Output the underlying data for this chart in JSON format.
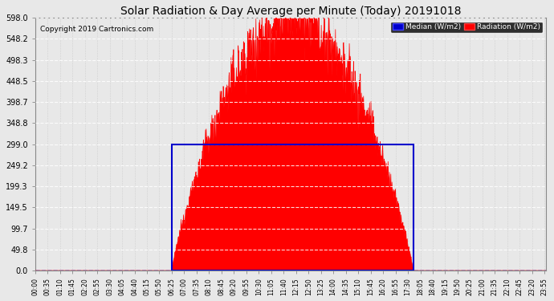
{
  "title": "Solar Radiation & Day Average per Minute (Today) 20191018",
  "copyright": "Copyright 2019 Cartronics.com",
  "legend_labels": [
    "Median (W/m2)",
    "Radiation (W/m2)"
  ],
  "legend_colors": [
    "#0000cc",
    "#ff0000"
  ],
  "bar_color": "#ff0000",
  "median_color": "#0000cc",
  "ymax": 598.0,
  "yticks": [
    0.0,
    49.8,
    99.7,
    149.5,
    199.3,
    249.2,
    299.0,
    348.8,
    398.7,
    448.5,
    498.3,
    548.2,
    598.0
  ],
  "background_color": "#e8e8e8",
  "plot_bg_color": "#e8e8e8",
  "sunrise_minute": 385,
  "sunset_minute": 1065,
  "median_value": 299.0,
  "total_minutes": 1440,
  "peak_value": 598.0,
  "tick_interval": 35
}
